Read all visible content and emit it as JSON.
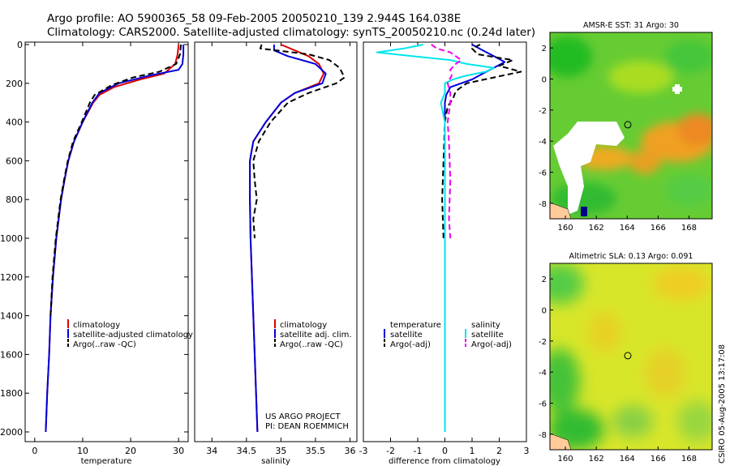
{
  "header": {
    "line1": "Argo profile: AO 5900365_58 09-Feb-2005 20050210_139 2.944S 164.038E",
    "line2": "Climatology: CARS2000. Satellite-adjusted climatology: synTS_20050210.nc (0.24d later)"
  },
  "timestamp": "CSIRO 05-Aug-2005 13:17:08",
  "colors": {
    "climatology": "#dd0000",
    "satellite": "#0000dd",
    "argo": "#000000",
    "salinity_sat": "#00e5ee",
    "salinity_argo": "#ee00ee"
  },
  "chart_data": [
    {
      "type": "line",
      "id": "temperature",
      "xlabel": "temperature",
      "xlim": [
        -2,
        32
      ],
      "ylim": [
        2050,
        0
      ],
      "x_ticks": [
        0,
        10,
        20,
        30
      ],
      "y_ticks": [
        0,
        200,
        400,
        600,
        800,
        1000,
        1200,
        1400,
        1600,
        1800,
        2000
      ],
      "legend_location": "bottom-right",
      "series": [
        {
          "name": "climatology",
          "color": "#dd0000",
          "style": "solid",
          "depth": [
            0,
            50,
            100,
            150,
            180,
            220,
            260,
            300,
            400,
            500,
            600,
            700,
            800,
            1000,
            1200,
            1400,
            1600,
            1800,
            2000
          ],
          "values": [
            30.0,
            29.8,
            29.3,
            27.0,
            22.0,
            16.5,
            13.5,
            12.2,
            10.0,
            8.2,
            7.0,
            6.2,
            5.5,
            4.5,
            3.8,
            3.3,
            3.0,
            2.6,
            2.3
          ]
        },
        {
          "name": "satellite-adjusted climatology",
          "color": "#0000dd",
          "style": "solid",
          "depth": [
            0,
            50,
            100,
            130,
            160,
            200,
            250,
            300,
            400,
            500,
            600,
            700,
            800,
            1000,
            1200,
            1400,
            1600,
            1800,
            2000
          ],
          "values": [
            31.0,
            31.0,
            30.8,
            30.0,
            24.0,
            17.5,
            13.5,
            12.0,
            10.0,
            8.2,
            7.0,
            6.2,
            5.5,
            4.5,
            3.8,
            3.3,
            3.0,
            2.6,
            2.3
          ]
        },
        {
          "name": "Argo(..raw -QC)",
          "color": "#000000",
          "style": "dashed",
          "depth": [
            0,
            50,
            100,
            140,
            170,
            210,
            260,
            300,
            400,
            500,
            600,
            700,
            800,
            1000,
            1200,
            1400
          ],
          "values": [
            30.5,
            30.3,
            29.5,
            26.0,
            20.5,
            16.0,
            12.5,
            11.5,
            9.8,
            8.0,
            6.9,
            6.1,
            5.4,
            4.4,
            3.7,
            3.3
          ]
        }
      ],
      "legend": [
        "climatology",
        "satellite-adjusted climatology",
        "Argo(..raw -QC)"
      ]
    },
    {
      "type": "line",
      "id": "salinity",
      "xlabel": "salinity",
      "xlim": [
        33.75,
        36.1
      ],
      "ylim": [
        2050,
        0
      ],
      "x_ticks": [
        34,
        34.5,
        35,
        35.5,
        36
      ],
      "x_tick_labels": [
        "34",
        "34.5",
        "35",
        "35.5",
        "36"
      ],
      "legend_location": "bottom-right",
      "annotation_lines": [
        "US ARGO PROJECT",
        "PI: DEAN ROEMMICH"
      ],
      "series": [
        {
          "name": "climatology",
          "color": "#dd0000",
          "style": "solid",
          "depth": [
            0,
            30,
            60,
            100,
            150,
            200,
            250,
            300,
            400,
            500,
            600,
            800,
            1000,
            1200,
            1400,
            1600,
            1800,
            2000
          ],
          "values": [
            35.0,
            35.2,
            35.4,
            35.55,
            35.62,
            35.55,
            35.2,
            35.0,
            34.78,
            34.6,
            34.55,
            34.55,
            34.56,
            34.58,
            34.6,
            34.62,
            34.64,
            34.66
          ]
        },
        {
          "name": "satellite adj. clim.",
          "color": "#0000dd",
          "style": "solid",
          "depth": [
            0,
            30,
            60,
            100,
            150,
            200,
            250,
            300,
            400,
            500,
            600,
            800,
            1000,
            1200,
            1400,
            1600,
            1800,
            2000
          ],
          "values": [
            34.9,
            34.9,
            35.1,
            35.5,
            35.65,
            35.6,
            35.2,
            35.0,
            34.78,
            34.6,
            34.55,
            34.55,
            34.56,
            34.58,
            34.6,
            34.62,
            34.64,
            34.66
          ]
        },
        {
          "name": "Argo(..raw -QC)",
          "color": "#000000",
          "style": "dashed",
          "depth": [
            0,
            20,
            50,
            80,
            120,
            170,
            200,
            250,
            300,
            400,
            500,
            600,
            700,
            800,
            900,
            1000
          ],
          "values": [
            34.72,
            34.7,
            35.4,
            35.7,
            35.85,
            35.92,
            35.8,
            35.4,
            35.1,
            34.85,
            34.68,
            34.6,
            34.62,
            34.65,
            34.6,
            34.62
          ]
        }
      ],
      "legend": [
        "climatology",
        "satellite adj. clim.",
        "Argo(..raw -QC)"
      ]
    },
    {
      "type": "line",
      "id": "difference",
      "xlabel": "difference from climatology",
      "xlim": [
        -3,
        3
      ],
      "ylim": [
        2050,
        0
      ],
      "x_ticks": [
        -3,
        -2,
        -1,
        0,
        1,
        2,
        3
      ],
      "legend_location": "bottom",
      "legend_groups": [
        {
          "title": "temperature",
          "items": [
            "satellite",
            "Argo(-adj)"
          ]
        },
        {
          "title": "salinity",
          "items": [
            "satellite",
            "Argo(-adj)"
          ]
        }
      ],
      "series": [
        {
          "name": "temperature satellite",
          "color": "#0000dd",
          "style": "solid",
          "depth": [
            0,
            30,
            60,
            90,
            120,
            150,
            180,
            220,
            260,
            300,
            400,
            600,
            800,
            1000,
            1400,
            1800,
            2000
          ],
          "values": [
            1.0,
            1.4,
            1.8,
            2.2,
            1.8,
            1.4,
            1.0,
            0.2,
            0.05,
            0.0,
            0.0,
            0.0,
            0.0,
            0.0,
            0.0,
            0.0,
            0.0
          ]
        },
        {
          "name": "temperature Argo(-adj)",
          "color": "#000000",
          "style": "dashed",
          "depth": [
            0,
            20,
            50,
            80,
            110,
            140,
            170,
            200,
            240,
            280,
            320,
            400,
            600,
            800,
            1000
          ],
          "values": [
            1.3,
            1.0,
            1.2,
            2.5,
            2.0,
            2.8,
            1.8,
            0.8,
            0.4,
            0.3,
            0.1,
            0.0,
            -0.05,
            -0.1,
            -0.05
          ]
        },
        {
          "name": "salinity satellite",
          "color": "#00e5ee",
          "style": "solid",
          "depth": [
            0,
            20,
            40,
            60,
            80,
            100,
            120,
            140,
            160,
            180,
            200,
            250,
            300,
            400,
            600,
            800,
            1000,
            1400,
            2000
          ],
          "values": [
            -0.8,
            -1.5,
            -2.5,
            -1.2,
            0.2,
            0.8,
            1.8,
            1.5,
            0.8,
            0.3,
            0.0,
            0.0,
            -0.15,
            0.0,
            0.0,
            0.0,
            0.0,
            0.0,
            0.0
          ]
        },
        {
          "name": "salinity Argo(-adj)",
          "color": "#ee00ee",
          "style": "dashed",
          "depth": [
            0,
            20,
            40,
            60,
            80,
            100,
            130,
            160,
            200,
            250,
            300,
            400,
            500,
            700,
            900,
            1000
          ],
          "values": [
            -0.5,
            -0.3,
            0.2,
            0.4,
            0.6,
            0.4,
            0.2,
            0.25,
            0.1,
            0.2,
            0.2,
            0.1,
            0.15,
            0.2,
            0.15,
            0.2
          ]
        }
      ],
      "legend": [
        "temperature",
        "satellite",
        "Argo(-adj)",
        "salinity",
        "satellite",
        "Argo(-adj)"
      ]
    },
    {
      "type": "heatmap",
      "id": "sst_map",
      "title": "AMSR-E SST: 31 Argo: 30",
      "xlim": [
        159,
        169.5
      ],
      "ylim": [
        -9,
        3
      ],
      "x_ticks": [
        160,
        162,
        164,
        166,
        168
      ],
      "y_ticks": [
        -8,
        -6,
        -4,
        -2,
        0,
        2
      ],
      "argo_position": [
        164.038,
        -2.944
      ]
    },
    {
      "type": "heatmap",
      "id": "sla_map",
      "title": "Altimetric SLA: 0.13 Argo: 0.091",
      "xlim": [
        159,
        169.5
      ],
      "ylim": [
        -9,
        3
      ],
      "x_ticks": [
        160,
        162,
        164,
        166,
        168
      ],
      "y_ticks": [
        -8,
        -6,
        -4,
        -2,
        0,
        2
      ],
      "argo_position": [
        164.038,
        -2.944
      ]
    }
  ]
}
